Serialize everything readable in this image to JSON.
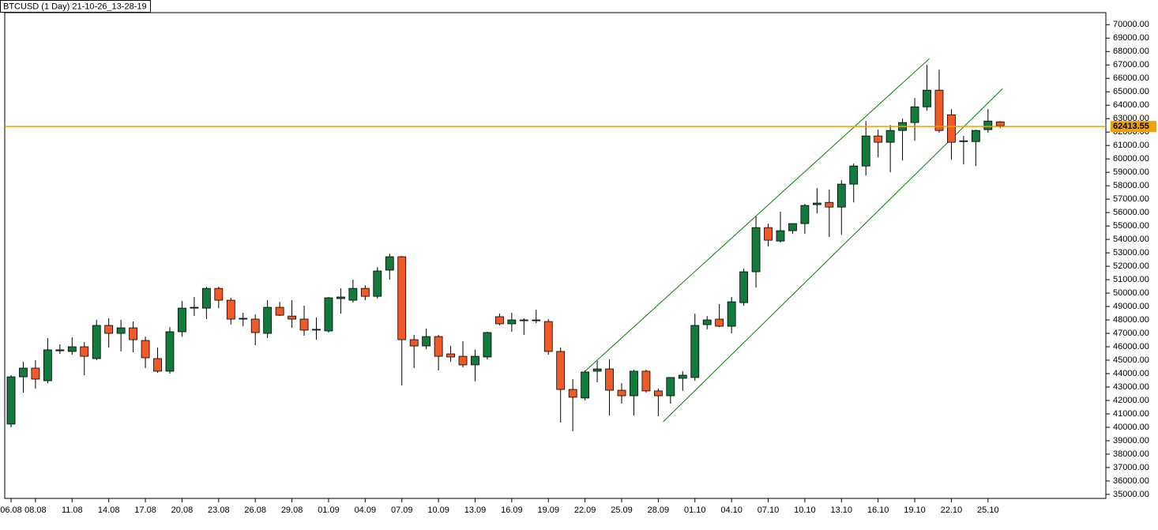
{
  "chart_data": {
    "type": "candlestick",
    "title": "BTCUSD (1 Day) 21-10-26_13-28-19",
    "categories": [
      "06.08",
      null,
      "08.08",
      null,
      null,
      "11.08",
      null,
      null,
      "14.08",
      null,
      null,
      "17.08",
      null,
      null,
      "20.08",
      null,
      null,
      "23.08",
      null,
      null,
      "26.08",
      null,
      null,
      "29.08",
      null,
      null,
      "01.09",
      null,
      null,
      "04.09",
      null,
      null,
      "07.09",
      null,
      null,
      "10.09",
      null,
      null,
      "13.09",
      null,
      null,
      "16.09",
      null,
      null,
      "19.09",
      null,
      null,
      "22.09",
      null,
      null,
      "25.09",
      null,
      null,
      "28.09",
      null,
      null,
      "01.10",
      null,
      null,
      "04.10",
      null,
      null,
      "07.10",
      null,
      null,
      "10.10",
      null,
      null,
      "13.10",
      null,
      null,
      "16.10",
      null,
      null,
      "19.10",
      null,
      null,
      "22.10",
      null,
      null,
      "25.10",
      null
    ],
    "open": [
      40240,
      43760,
      44410,
      43470,
      45700,
      45650,
      46000,
      45120,
      47590,
      47000,
      47410,
      46470,
      45120,
      44180,
      47120,
      48880,
      48880,
      50350,
      49470,
      48060,
      48060,
      47000,
      48940,
      48290,
      48060,
      47240,
      47180,
      49590,
      49470,
      50350,
      49760,
      51710,
      52710,
      46530,
      46060,
      46760,
      45470,
      45290,
      44650,
      45240,
      48240,
      47710,
      48000,
      47940,
      47880,
      45650,
      42820,
      42180,
      44180,
      44350,
      42760,
      42350,
      44180,
      42710,
      42350,
      43650,
      43710,
      47650,
      48060,
      47530,
      49290,
      51590,
      54880,
      53880,
      54650,
      55180,
      56590,
      56760,
      56410,
      58120,
      59470,
      61710,
      61240,
      62120,
      62710,
      63880,
      65120,
      63290,
      61300,
      61290,
      62180,
      62760
    ],
    "high": [
      43880,
      44880,
      45000,
      46650,
      46180,
      46700,
      46350,
      48000,
      48120,
      48000,
      47880,
      46760,
      45940,
      47470,
      49410,
      49710,
      50470,
      50470,
      49650,
      48530,
      48410,
      49470,
      49350,
      49470,
      49060,
      48180,
      49710,
      50350,
      51000,
      50590,
      51940,
      52940,
      52760,
      46880,
      47350,
      46880,
      46060,
      46410,
      45770,
      47120,
      48470,
      48530,
      48120,
      48760,
      48060,
      45940,
      43590,
      44240,
      44940,
      45060,
      43290,
      44290,
      44290,
      42880,
      43710,
      44180,
      48470,
      48290,
      49180,
      49710,
      51820,
      55710,
      55180,
      56060,
      55180,
      56650,
      57820,
      57710,
      58410,
      59650,
      62820,
      62180,
      62530,
      63000,
      64530,
      67000,
      66650,
      63710,
      61710,
      62180,
      63710,
      62820
    ],
    "low": [
      40000,
      42590,
      42880,
      43290,
      45470,
      45410,
      43880,
      45000,
      45940,
      45650,
      45590,
      44410,
      44060,
      44000,
      46760,
      48290,
      48060,
      48880,
      47650,
      47530,
      46120,
      46650,
      48290,
      47410,
      46820,
      46530,
      47060,
      48470,
      49290,
      49470,
      49590,
      51000,
      43120,
      44410,
      45820,
      44240,
      44880,
      44470,
      43410,
      45060,
      47590,
      47120,
      46880,
      47760,
      45410,
      40350,
      39710,
      42000,
      43350,
      40880,
      41760,
      40880,
      42590,
      40820,
      41760,
      42710,
      43470,
      47300,
      47470,
      47000,
      49060,
      50410,
      53470,
      53760,
      54410,
      54410,
      55940,
      54180,
      54350,
      56760,
      58760,
      60120,
      59000,
      59880,
      61350,
      63590,
      61940,
      59940,
      59590,
      59470,
      61940,
      62300
    ],
    "close": [
      43760,
      44410,
      43590,
      45770,
      45770,
      46000,
      45290,
      47590,
      47000,
      47410,
      46530,
      45180,
      44180,
      47120,
      48880,
      48940,
      50350,
      49470,
      48060,
      48120,
      47060,
      48940,
      48350,
      48060,
      47240,
      47300,
      49650,
      49710,
      50350,
      49760,
      51650,
      52710,
      46530,
      46060,
      46760,
      45290,
      45240,
      44650,
      45290,
      47060,
      47710,
      48000,
      47940,
      48000,
      45650,
      42820,
      42240,
      44120,
      44350,
      42760,
      42350,
      44180,
      42710,
      42350,
      43710,
      43880,
      47590,
      48000,
      47530,
      49350,
      51590,
      54880,
      53940,
      54650,
      55180,
      56530,
      56710,
      56410,
      58120,
      59470,
      61710,
      61240,
      62120,
      62710,
      63880,
      65120,
      62120,
      61240,
      61350,
      62120,
      62820,
      62470
    ],
    "up_color": "#127a3c",
    "down_color": "#f05a28",
    "price_line": 62413.55,
    "price_color": "#f0a000",
    "channel": {
      "color": "#008000",
      "lines": [
        {
          "x": [
            47,
            75.2
          ],
          "y": [
            44180,
            67470
          ]
        },
        {
          "x": [
            53.4,
            81.2
          ],
          "y": [
            40410,
            65240
          ]
        }
      ]
    },
    "ylim": [
      34700,
      70900
    ],
    "yticks": [
      {
        "value": 35000,
        "label": "35000.00"
      },
      {
        "value": 36000,
        "label": "36000.00"
      },
      {
        "value": 37000,
        "label": "37000.00"
      },
      {
        "value": 38000,
        "label": "38000.00"
      },
      {
        "value": 39000,
        "label": "39000.00"
      },
      {
        "value": 40000,
        "label": "40000.00"
      },
      {
        "value": 41000,
        "label": "41000.00"
      },
      {
        "value": 42000,
        "label": "42000.00"
      },
      {
        "value": 43000,
        "label": "43000.00"
      },
      {
        "value": 44000,
        "label": "44000.00"
      },
      {
        "value": 45000,
        "label": "45000.00"
      },
      {
        "value": 46000,
        "label": "46000.00"
      },
      {
        "value": 47000,
        "label": "47000.00"
      },
      {
        "value": 48000,
        "label": "48000.00"
      },
      {
        "value": 49000,
        "label": "49000.00"
      },
      {
        "value": 50000,
        "label": "50000.00"
      },
      {
        "value": 51000,
        "label": "51000.00"
      },
      {
        "value": 52000,
        "label": "52000.00"
      },
      {
        "value": 53000,
        "label": "53000.00"
      },
      {
        "value": 54000,
        "label": "54000.00"
      },
      {
        "value": 55000,
        "label": "55000.00"
      },
      {
        "value": 56000,
        "label": "56000.00"
      },
      {
        "value": 57000,
        "label": "57000.00"
      },
      {
        "value": 58000,
        "label": "58000.00"
      },
      {
        "value": 59000,
        "label": "59000.00"
      },
      {
        "value": 60000,
        "label": "60000.00"
      },
      {
        "value": 61000,
        "label": "61000.00"
      },
      {
        "value": 62000,
        "label": "62000.00"
      },
      {
        "value": 63000,
        "label": "63000.00"
      },
      {
        "value": 64000,
        "label": "64000.00"
      },
      {
        "value": 65000,
        "label": "65000.00"
      },
      {
        "value": 66000,
        "label": "66000.00"
      },
      {
        "value": 67000,
        "label": "67000.00"
      },
      {
        "value": 68000,
        "label": "68000.00"
      },
      {
        "value": 69000,
        "label": "69000.00"
      },
      {
        "value": 70000,
        "label": "70000.00"
      }
    ]
  }
}
